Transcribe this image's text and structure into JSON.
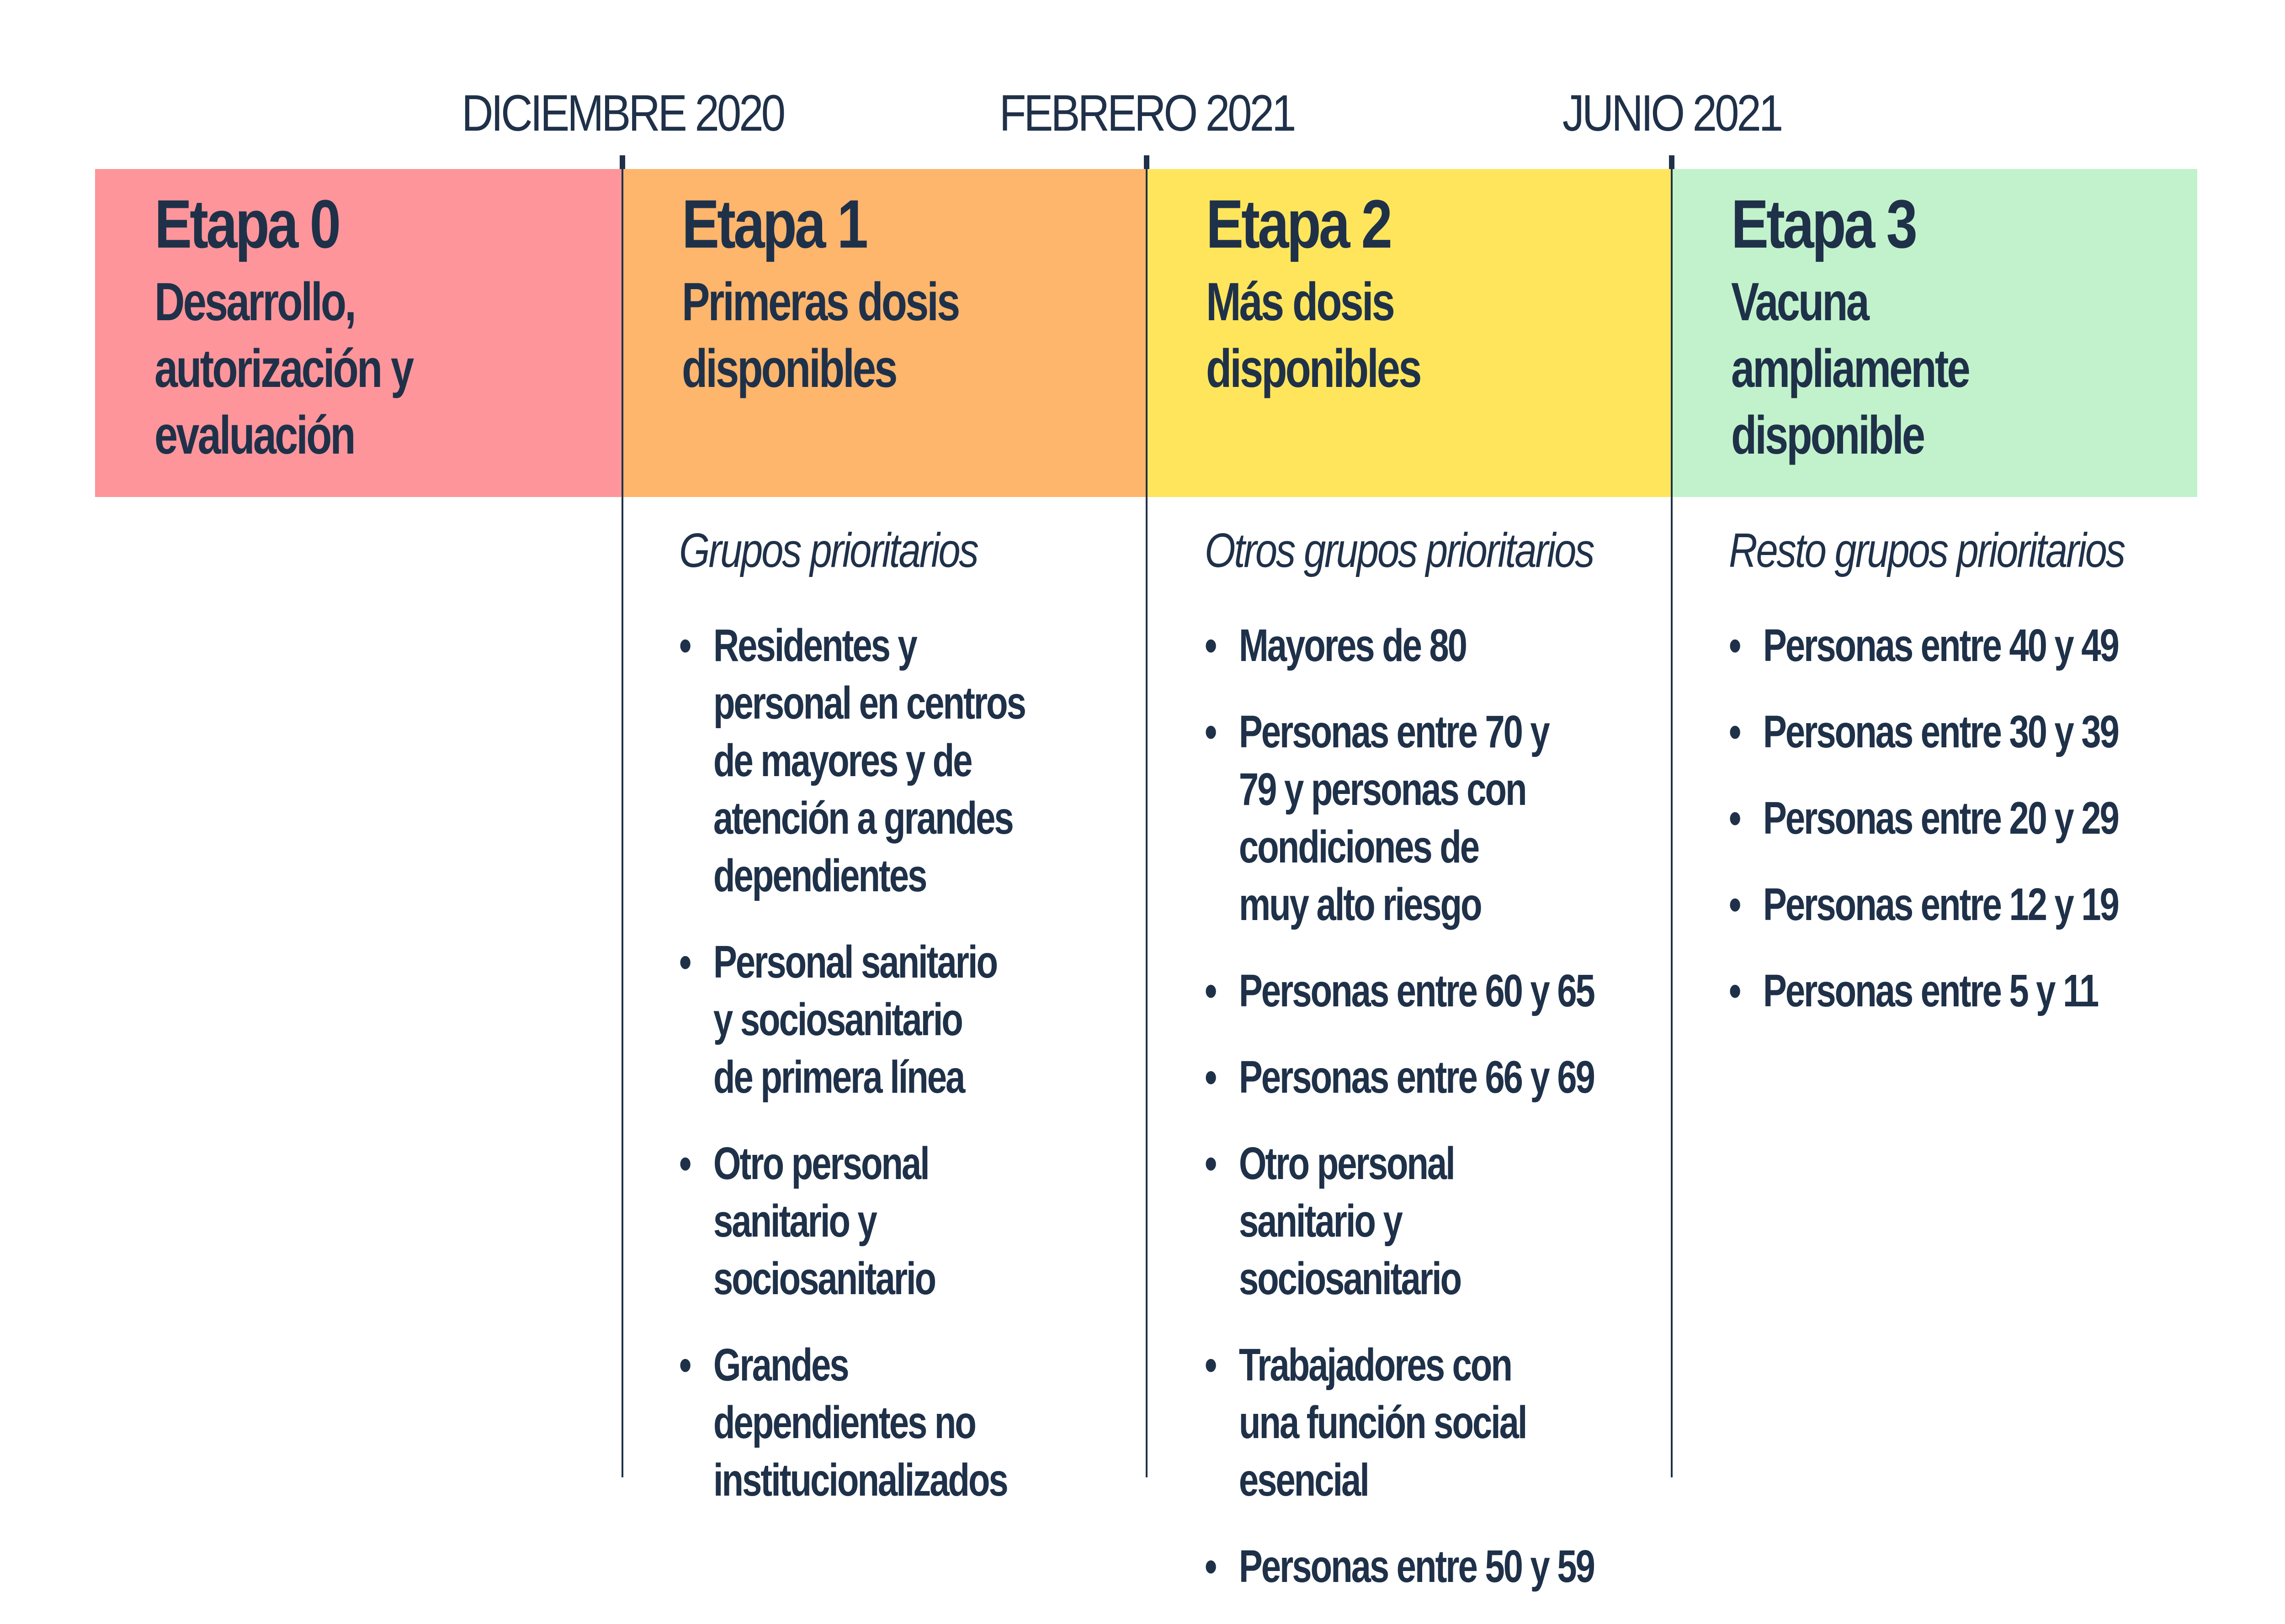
{
  "timeline": {
    "dates": [
      "DICIEMBRE 2020",
      "FEBRERO 2021",
      "JUNIO 2021"
    ]
  },
  "stages": [
    {
      "title": "Etapa 0",
      "subtitle": "Desarrollo, autorización y evaluación",
      "color": "#fd959b",
      "group_label": "",
      "items": []
    },
    {
      "title": "Etapa 1",
      "subtitle": "Primeras dosis disponibles",
      "color": "#feb56c",
      "group_label": "Grupos prioritarios",
      "items": [
        "Residentes y personal en centros de mayores y de atención a grandes dependientes",
        "Personal sanitario y sociosanitario de primera línea",
        "Otro personal sanitario y sociosanitario",
        "Grandes dependientes no institucionalizados"
      ]
    },
    {
      "title": "Etapa 2",
      "subtitle": "Más dosis disponibles",
      "color": "#fee55c",
      "group_label": "Otros grupos prioritarios",
      "items": [
        "Mayores de 80",
        "Personas entre 70 y 79 y personas con condiciones de muy alto riesgo",
        "Personas entre 60 y 65",
        "Personas entre 66 y 69",
        "Otro personal sanitario y sociosanitario",
        "Trabajadores con una función social esencial",
        "Personas entre 50 y 59"
      ]
    },
    {
      "title": "Etapa 3",
      "subtitle": "Vacuna ampliamente disponible",
      "color": "#c2f2cb",
      "group_label": "Resto grupos prioritarios",
      "items": [
        "Personas entre 40 y 49",
        "Personas entre 30 y 39",
        "Personas entre 20 y 29",
        "Personas entre 12 y 19",
        "Personas entre 5 y 11"
      ]
    }
  ]
}
